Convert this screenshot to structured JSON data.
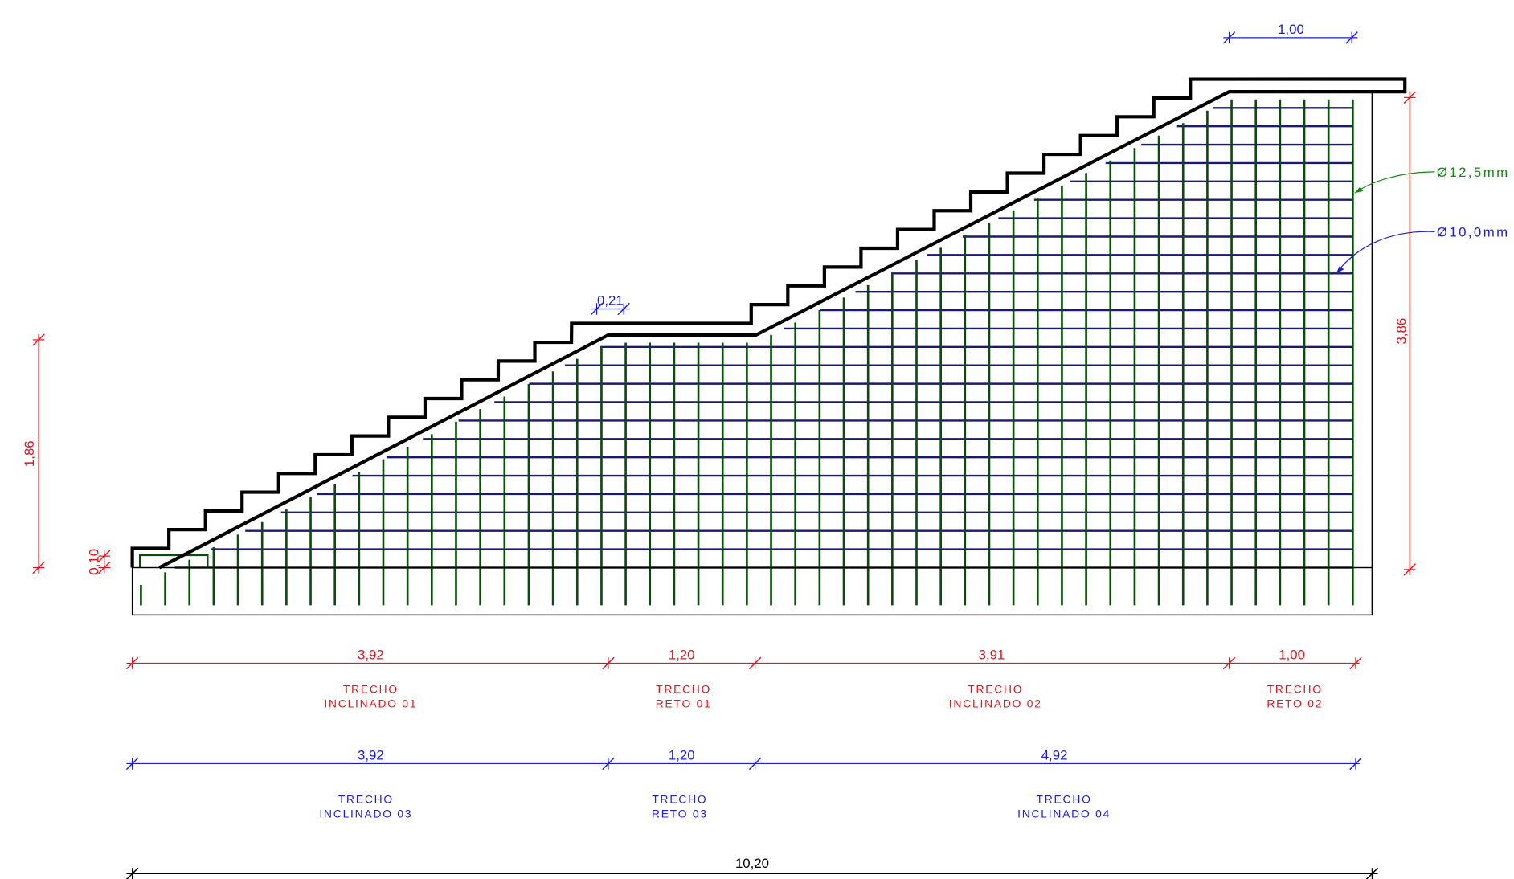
{
  "dimensions": {
    "top_width": "1,00",
    "landing_offset": "0,21",
    "left_height": "1,86",
    "base_offset": "0,10",
    "right_height": "3,86",
    "total_width": "10,20"
  },
  "sections_red": [
    {
      "length": "3,92",
      "line_1": "TRECHO",
      "line_2": "INCLINADO 01"
    },
    {
      "length": "1,20",
      "line_1": "TRECHO",
      "line_2": "RETO 01"
    },
    {
      "length": "3,91",
      "line_1": "TRECHO",
      "line_2": "INCLINADO 02"
    },
    {
      "length": "1,00",
      "line_1": "TRECHO",
      "line_2": "RETO 02"
    }
  ],
  "sections_blue": [
    {
      "length": "3,92",
      "line_1": "TRECHO",
      "line_2": "INCLINADO 03"
    },
    {
      "length": "1,20",
      "line_1": "TRECHO",
      "line_2": "RETO 03"
    },
    {
      "length": "4,92",
      "line_1": "TRECHO",
      "line_2": "INCLINADO 04"
    }
  ],
  "rebar_labels": [
    "Ø12,5mm",
    "Ø10,0mm"
  ]
}
